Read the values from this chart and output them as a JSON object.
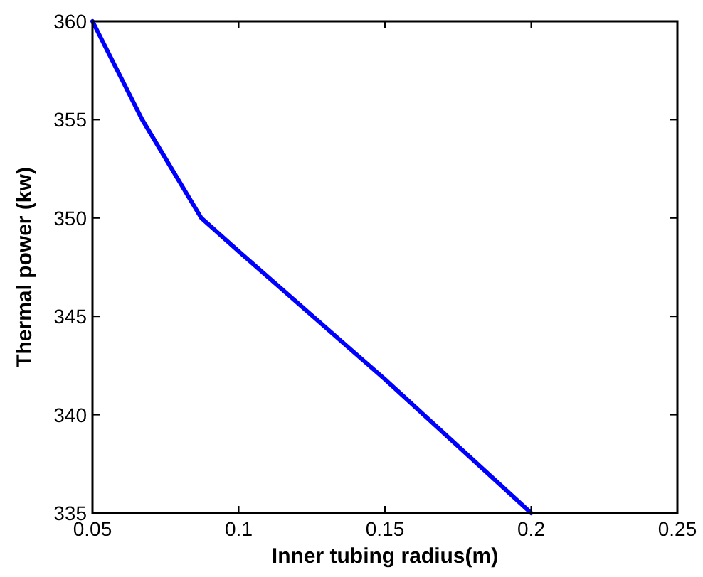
{
  "chart_data": {
    "type": "line",
    "xlabel": "Inner tubing radius(m)",
    "ylabel": "Thermal power (kw)",
    "x": [
      0.05,
      0.067,
      0.0872,
      0.1,
      0.15,
      0.2
    ],
    "series": [
      {
        "color": "#0000ff",
        "values": [
          360,
          355,
          350,
          348.3,
          341.8,
          335
        ]
      }
    ],
    "xlim": [
      0.05,
      0.25
    ],
    "xticks": [
      0.05,
      0.1,
      0.15,
      0.2,
      0.25
    ],
    "ylim": [
      335,
      360
    ],
    "yticks": [
      335,
      340,
      345,
      350,
      355,
      360
    ],
    "marker": "none",
    "line_style": "solid"
  }
}
